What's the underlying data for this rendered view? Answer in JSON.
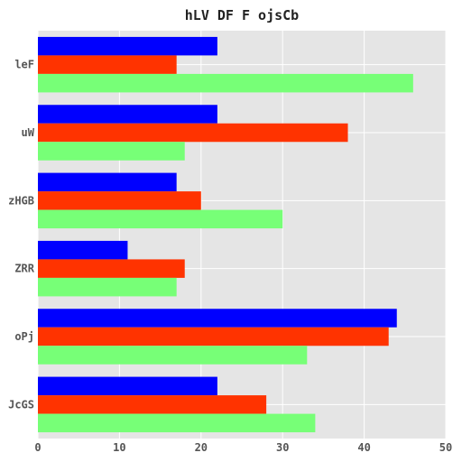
{
  "chart_data": {
    "type": "bar",
    "orientation": "horizontal",
    "title": "hLV DF F ojsCb",
    "xlabel": "",
    "ylabel": "",
    "categories": [
      "leF",
      "uW",
      "zHGB",
      "ZRR",
      "oPj",
      "JcGS"
    ],
    "series": [
      {
        "color": "#0000ff",
        "values": [
          22,
          22,
          17,
          11,
          44,
          22
        ]
      },
      {
        "color": "#ff3300",
        "values": [
          17,
          38,
          20,
          18,
          43,
          28
        ]
      },
      {
        "color": "#77ff77",
        "values": [
          46,
          18,
          30,
          17,
          33,
          34
        ]
      }
    ],
    "xlim": [
      0,
      50
    ],
    "xticks": [
      0,
      10,
      20,
      30,
      40,
      50
    ],
    "grid": true,
    "background": "#e5e5e5",
    "gridColor": "#ffffff"
  }
}
